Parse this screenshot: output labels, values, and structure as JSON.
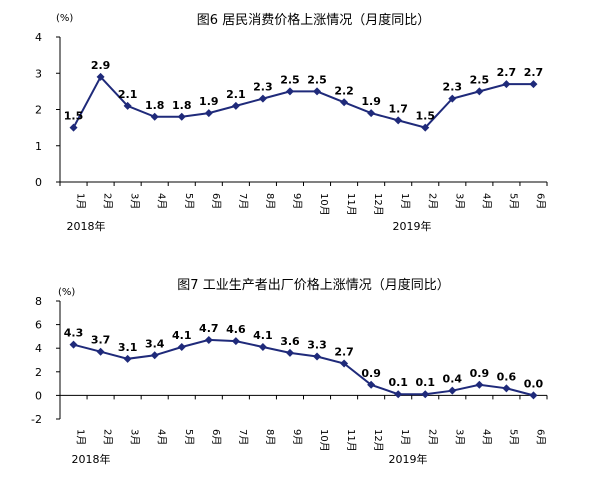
{
  "chart_data": [
    {
      "type": "line",
      "title": "图6   居民消费价格上涨情况（月度同比）",
      "unit": "(%)",
      "categories": [
        "1月",
        "2月",
        "3月",
        "4月",
        "5月",
        "6月",
        "7月",
        "8月",
        "9月",
        "10月",
        "11月",
        "12月",
        "1月",
        "2月",
        "3月",
        "4月",
        "5月",
        "6月"
      ],
      "year_labels": [
        "2018年",
        "2019年"
      ],
      "values": [
        1.5,
        2.9,
        2.1,
        1.8,
        1.8,
        1.9,
        2.1,
        2.3,
        2.5,
        2.5,
        2.2,
        1.9,
        1.7,
        1.5,
        2.3,
        2.5,
        2.7,
        2.7
      ],
      "data_labels": [
        "1.5",
        "2.9",
        "2.1",
        "1.8",
        "1.8",
        "1.9",
        "2.1",
        "2.3",
        "2.5",
        "2.5",
        "2.2",
        "1.9",
        "1.7",
        "1.5",
        "2.3",
        "2.5",
        "2.7",
        "2.7"
      ],
      "ylim": [
        0,
        4
      ],
      "yticks": [
        "0",
        "1",
        "2",
        "3",
        "4"
      ],
      "color": "#1f2a7a",
      "grid": false
    },
    {
      "type": "line",
      "title": "图7   工业生产者出厂价格上涨情况（月度同比）",
      "unit": "(%)",
      "categories": [
        "1月",
        "2月",
        "3月",
        "4月",
        "5月",
        "6月",
        "7月",
        "8月",
        "9月",
        "10月",
        "11月",
        "12月",
        "1月",
        "2月",
        "3月",
        "4月",
        "5月",
        "6月"
      ],
      "year_labels": [
        "2018年",
        "2019年"
      ],
      "values": [
        4.3,
        3.7,
        3.1,
        3.4,
        4.1,
        4.7,
        4.6,
        4.1,
        3.6,
        3.3,
        2.7,
        0.9,
        0.1,
        0.1,
        0.4,
        0.9,
        0.6,
        0.0
      ],
      "data_labels": [
        "4.3",
        "3.7",
        "3.1",
        "3.4",
        "4.1",
        "4.7",
        "4.6",
        "4.1",
        "3.6",
        "3.3",
        "2.7",
        "0.9",
        "0.1",
        "0.1",
        "0.4",
        "0.9",
        "0.6",
        "0.0"
      ],
      "ylim": [
        -2,
        8
      ],
      "yticks": [
        "-2",
        "0",
        "2",
        "4",
        "6",
        "8"
      ],
      "color": "#1f2a7a",
      "grid": false
    }
  ]
}
